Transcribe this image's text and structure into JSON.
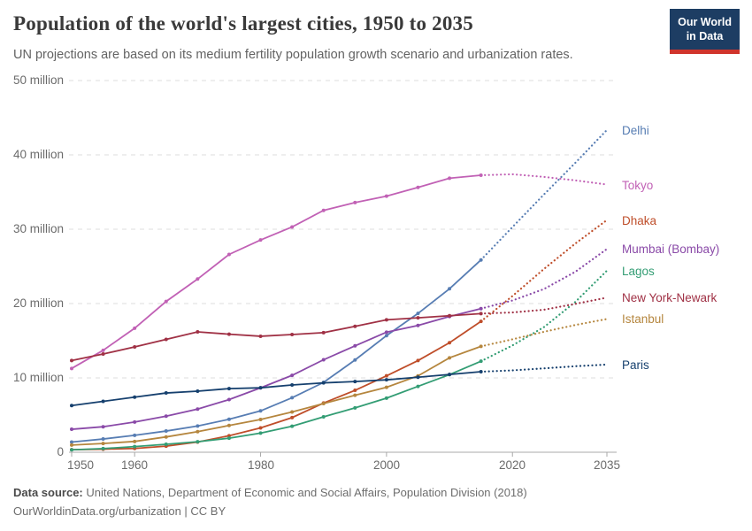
{
  "header": {
    "title": "Population of the world's largest cities, 1950 to 2035",
    "subtitle": "UN projections are based on its medium fertility population growth scenario and urbanization rates.",
    "logo": {
      "line1": "Our World",
      "line2": "in Data",
      "bg_color": "#1d3d63",
      "accent_color": "#d0342c"
    }
  },
  "footer": {
    "source_label": "Data source:",
    "source_text": " United Nations, Department of Economic and Social Affairs, Population Division (2018)",
    "license_text": "OurWorldinData.org/urbanization | CC BY"
  },
  "chart_data": {
    "type": "line",
    "title": "Population of the world's largest cities, 1950 to 2035",
    "xlabel": "",
    "ylabel": "",
    "xlim": [
      1950,
      2035
    ],
    "ylim": [
      0,
      50000000
    ],
    "grid": true,
    "legend_position": "right",
    "units": "million people",
    "solid_until": 2015,
    "projection_note": "dotted lines are UN projections after 2015",
    "x": [
      1950,
      1955,
      1960,
      1965,
      1970,
      1975,
      1980,
      1985,
      1990,
      1995,
      2000,
      2005,
      2010,
      2015,
      2020,
      2025,
      2030,
      2035
    ],
    "x_ticks": [
      1950,
      1960,
      1980,
      2000,
      2020,
      2035
    ],
    "x_tick_labels": [
      "1950",
      "1960",
      "1980",
      "2000",
      "2020",
      "2035"
    ],
    "y_ticks": [
      0,
      10,
      20,
      30,
      40,
      50
    ],
    "y_tick_labels": [
      "0",
      "10 million",
      "20 million",
      "30 million",
      "40 million",
      "50 million"
    ],
    "series": [
      {
        "name": "Delhi",
        "color": "#577db3",
        "values": [
          1.37,
          1.78,
          2.28,
          2.85,
          3.53,
          4.43,
          5.56,
          7.33,
          9.39,
          12.41,
          15.69,
          18.67,
          21.99,
          25.87,
          30.29,
          34.67,
          38.94,
          43.35
        ]
      },
      {
        "name": "Tokyo",
        "color": "#c161b5",
        "values": [
          11.27,
          13.71,
          16.68,
          20.28,
          23.3,
          26.61,
          28.55,
          30.3,
          32.53,
          33.59,
          34.45,
          35.62,
          36.86,
          37.26,
          37.39,
          37.04,
          36.57,
          36.01
        ]
      },
      {
        "name": "Dhaka",
        "color": "#bf4e2a",
        "values": [
          0.34,
          0.41,
          0.51,
          0.82,
          1.37,
          2.22,
          3.27,
          4.66,
          6.62,
          8.33,
          10.28,
          12.33,
          14.73,
          17.6,
          21.01,
          24.65,
          28.08,
          31.23
        ]
      },
      {
        "name": "Mumbai (Bombay)",
        "color": "#8a4aa8",
        "values": [
          3.09,
          3.43,
          4.06,
          4.85,
          5.81,
          7.08,
          8.66,
          10.34,
          12.44,
          14.31,
          16.15,
          17.05,
          18.26,
          19.32,
          20.41,
          21.95,
          24.28,
          27.34
        ]
      },
      {
        "name": "Lagos",
        "color": "#339d74",
        "values": [
          0.33,
          0.49,
          0.76,
          1.07,
          1.41,
          1.89,
          2.57,
          3.5,
          4.76,
          5.97,
          7.28,
          8.86,
          10.44,
          12.24,
          14.37,
          16.83,
          20.23,
          24.42
        ]
      },
      {
        "name": "New York-Newark",
        "color": "#a03145",
        "values": [
          12.34,
          13.22,
          14.16,
          15.18,
          16.19,
          15.88,
          15.6,
          15.83,
          16.09,
          16.94,
          17.81,
          18.08,
          18.36,
          18.65,
          18.8,
          19.17,
          19.96,
          20.8
        ]
      },
      {
        "name": "Istanbul",
        "color": "#b5863e",
        "values": [
          0.97,
          1.18,
          1.45,
          2.06,
          2.77,
          3.6,
          4.4,
          5.41,
          6.55,
          7.67,
          8.74,
          10.27,
          12.7,
          14.24,
          15.19,
          16.2,
          17.12,
          17.92
        ]
      },
      {
        "name": "Paris",
        "color": "#16406e",
        "values": [
          6.28,
          6.84,
          7.41,
          7.97,
          8.21,
          8.56,
          8.67,
          9.05,
          9.33,
          9.51,
          9.74,
          10.09,
          10.46,
          10.83,
          11.01,
          11.28,
          11.57,
          11.79
        ]
      }
    ]
  }
}
